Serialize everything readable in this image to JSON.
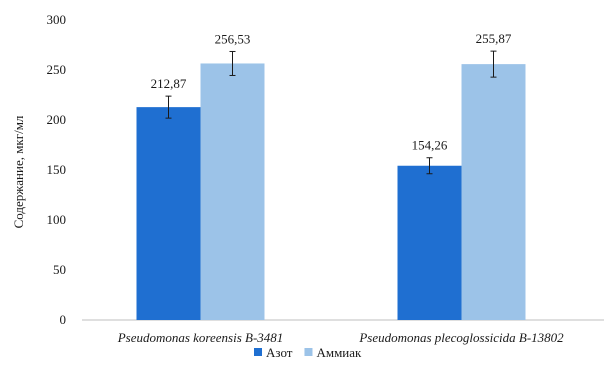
{
  "chart_data": {
    "type": "bar",
    "categories": [
      "Pseudomonas koreensis B-3481",
      "Pseudomonas plecoglossicida B-13802"
    ],
    "series": [
      {
        "name": "Азот",
        "values": [
          212.87,
          154.26
        ],
        "labels": [
          "212,87",
          "154,26"
        ],
        "errors": [
          11,
          8
        ],
        "color": "#1f6fd1"
      },
      {
        "name": "Аммиак",
        "values": [
          256.53,
          255.87
        ],
        "labels": [
          "256,53",
          "255,87"
        ],
        "errors": [
          12,
          13
        ],
        "color": "#9cc3e8"
      }
    ],
    "ylabel": "Содержание, мкг/мл",
    "ylim": [
      0,
      300
    ],
    "yticks": [
      0,
      50,
      100,
      150,
      200,
      250,
      300
    ],
    "legend_position": "bottom"
  }
}
